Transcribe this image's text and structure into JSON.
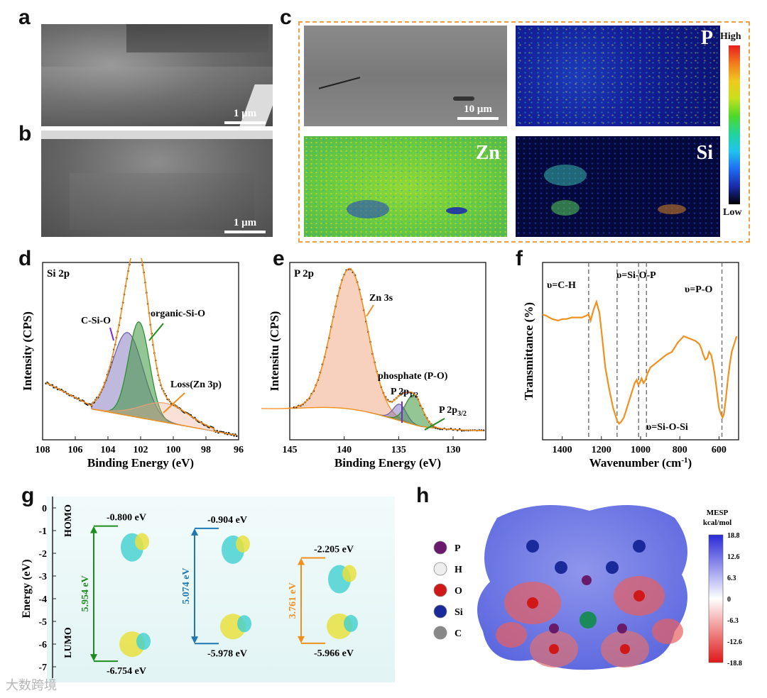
{
  "panels": {
    "a": "a",
    "b": "b",
    "c": "c",
    "d": "d",
    "e": "e",
    "f": "f",
    "g": "g",
    "h": "h"
  },
  "sem": {
    "a_scale": "1 μm",
    "b_scale": "1 μm",
    "c_scale": "10 μm"
  },
  "maps": {
    "p": "P",
    "zn": "Zn",
    "si": "Si",
    "colorbar_high": "High",
    "colorbar_low": "Low",
    "colorbar_stops": [
      "#000000",
      "#1a2aa8",
      "#1f6cf0",
      "#1fc4f0",
      "#22d49a",
      "#4fd82a",
      "#c8e01e",
      "#f0c81e",
      "#f07a1e",
      "#e81e1e"
    ]
  },
  "chart_data": [
    {
      "panel": "d",
      "type": "line",
      "title": "Si 2p",
      "xlabel": "Binding Energy (eV)",
      "ylabel": "Intensity (CPS)",
      "xlim": [
        108,
        96
      ],
      "xticks": [
        108,
        106,
        104,
        102,
        100,
        98,
        96
      ],
      "series": [
        {
          "name": "C-Si-O",
          "center": 102.8,
          "fwhm": 2.2,
          "height": 0.52
        },
        {
          "name": "organic-Si-O",
          "center": 102.1,
          "fwhm": 1.5,
          "height": 0.6
        },
        {
          "name": "Loss(Zn 3p)",
          "center": 100.5,
          "fwhm": 3.5,
          "height": 0.12
        }
      ],
      "baseline": {
        "start": 0.55,
        "end": 0.02
      },
      "annotations": [
        "C-Si-O",
        "organic-Si-O",
        "Loss(Zn 3p)"
      ]
    },
    {
      "panel": "e",
      "type": "line",
      "title": "P 2p",
      "xlabel": "Binding Energy (eV)",
      "ylabel": "Intensitu (CPS)",
      "xlim": [
        145,
        127
      ],
      "xticks": [
        145,
        140,
        135,
        130
      ],
      "series": [
        {
          "name": "Zn 3s",
          "center": 139.5,
          "fwhm": 3.8,
          "height": 0.86
        },
        {
          "name": "P 2p1/2",
          "center": 134.9,
          "fwhm": 1.4,
          "height": 0.1
        },
        {
          "name": "P 2p3/2",
          "center": 133.6,
          "fwhm": 1.8,
          "height": 0.18
        }
      ],
      "annotations": [
        "Zn 3s",
        "phosphate (P-O)",
        "P 2p",
        "1/2",
        "P 2p",
        "3/2"
      ]
    },
    {
      "panel": "f",
      "type": "line",
      "xlabel": "Wavenumber (cm",
      "xlabel_sup": "-1",
      "xlabel_end": ")",
      "ylabel": "Transmittance (%)",
      "xlim": [
        1500,
        500
      ],
      "xticks": [
        1400,
        1200,
        1000,
        800,
        600
      ],
      "x": [
        1500,
        1480,
        1450,
        1420,
        1400,
        1380,
        1350,
        1320,
        1300,
        1280,
        1265,
        1255,
        1240,
        1225,
        1210,
        1195,
        1180,
        1160,
        1140,
        1120,
        1110,
        1100,
        1085,
        1070,
        1060,
        1045,
        1030,
        1020,
        1012,
        1005,
        995,
        985,
        975,
        965,
        950,
        930,
        900,
        870,
        840,
        810,
        780,
        760,
        740,
        720,
        700,
        690,
        680,
        670,
        660,
        650,
        640,
        630,
        620,
        610,
        600,
        590,
        582,
        575,
        565,
        555,
        545,
        535,
        520,
        510
      ],
      "y": [
        0.74,
        0.73,
        0.71,
        0.7,
        0.71,
        0.71,
        0.72,
        0.72,
        0.72,
        0.73,
        0.74,
        0.7,
        0.77,
        0.82,
        0.75,
        0.58,
        0.4,
        0.26,
        0.14,
        0.06,
        0.04,
        0.05,
        0.08,
        0.14,
        0.18,
        0.24,
        0.3,
        0.32,
        0.29,
        0.3,
        0.33,
        0.3,
        0.32,
        0.36,
        0.4,
        0.42,
        0.45,
        0.48,
        0.5,
        0.56,
        0.6,
        0.59,
        0.58,
        0.57,
        0.55,
        0.52,
        0.48,
        0.45,
        0.46,
        0.5,
        0.48,
        0.42,
        0.34,
        0.24,
        0.14,
        0.1,
        0.08,
        0.1,
        0.2,
        0.32,
        0.42,
        0.5,
        0.56,
        0.6
      ],
      "vlines": [
        1265,
        1120,
        1010,
        970,
        585
      ],
      "annotations": [
        "υ=C-H",
        "υ=Si-O-P",
        "υ=P-O",
        "υ=Si-O-Si"
      ]
    },
    {
      "panel": "g",
      "type": "line",
      "ylabel": "Energy (eV)",
      "ylim": [
        -7.5,
        0.5
      ],
      "yticks": [
        0,
        -1,
        -2,
        -3,
        -4,
        -5,
        -6,
        -7
      ],
      "series": [
        {
          "name": "molecule 1",
          "homo": -0.8,
          "lumo": -6.754,
          "gap": 5.954,
          "color": "#1e8c1e"
        },
        {
          "name": "molecule 2",
          "homo": -0.904,
          "lumo": -5.978,
          "gap": 5.074,
          "color": "#1f78b4"
        },
        {
          "name": "molecule 3",
          "homo": -2.205,
          "lumo": -5.966,
          "gap": 3.761,
          "color": "#f0901e"
        }
      ],
      "labels": {
        "homo": "HOMO",
        "lumo": "LUMO",
        "homo_vals": [
          "-0.800 eV",
          "-0.904 eV",
          "-2.205 eV"
        ],
        "lumo_vals": [
          "-6.754 eV",
          "-5.978 eV",
          "-5.966 eV"
        ],
        "gap_vals": [
          "5.954 eV",
          "5.074 eV",
          "3.761 eV"
        ]
      }
    }
  ],
  "mesp": {
    "title": "MESP",
    "unit": "kcal/mol",
    "ticks": [
      "18.8",
      "12.6",
      "6.3",
      "0",
      "-6.3",
      "-12.6",
      "-18.8"
    ],
    "legend": [
      {
        "label": "P",
        "color": "#6a1a6a"
      },
      {
        "label": "H",
        "color": "#eeeeee"
      },
      {
        "label": "O",
        "color": "#d01818"
      },
      {
        "label": "Si",
        "color": "#1a2a9a"
      },
      {
        "label": "C",
        "color": "#888888"
      }
    ]
  },
  "colors": {
    "accent": "#f0901e",
    "frame_c": "#f0a040",
    "green": "#1e8c1e",
    "blue": "#1f78b4",
    "purple": "#7a2ad0"
  },
  "watermark": "大数跨境"
}
